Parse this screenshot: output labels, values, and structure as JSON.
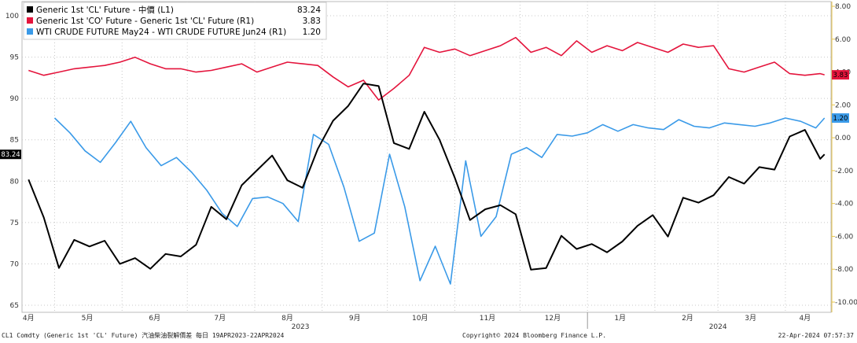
{
  "footer": {
    "left": "CL1 Comdty (Generic 1st 'CL' Future) 汽油柴油裂解價差  每日 19APR2023-22APR2024",
    "center": "Copyright© 2024 Bloomberg Finance L.P.",
    "right": "22-Apr-2024 07:57:37"
  },
  "chart_data": {
    "type": "line",
    "title": "",
    "x_month_labels": [
      "4月",
      "5月",
      "6月",
      "7月",
      "8月",
      "9月",
      "10月",
      "11月",
      "12月",
      "1月",
      "2月",
      "3月",
      "4月"
    ],
    "x_year_labels": [
      "2023",
      "2024"
    ],
    "left_axis": {
      "min": 65,
      "max": 100,
      "ticks": [
        65,
        70,
        75,
        80,
        85,
        90,
        95,
        100
      ]
    },
    "right_axis": {
      "min": -10,
      "max": 8,
      "ticks": [
        "-10.00",
        "-8.00",
        "-6.00",
        "-4.00",
        "-2.00",
        "0.00",
        "2.00",
        "4.00",
        "6.00",
        "8.00"
      ]
    },
    "grid": true,
    "legend_position": "top-left",
    "series": [
      {
        "name": "Generic 1st 'CL' Future - 中價 (L1)",
        "axis": "left",
        "color": "#000000",
        "last_value": "83.24",
        "x": [
          "2023-04-19",
          "2023-04-26",
          "2023-05-03",
          "2023-05-10",
          "2023-05-17",
          "2023-05-24",
          "2023-05-31",
          "2023-06-07",
          "2023-06-14",
          "2023-06-21",
          "2023-06-28",
          "2023-07-05",
          "2023-07-12",
          "2023-07-19",
          "2023-07-26",
          "2023-08-02",
          "2023-08-09",
          "2023-08-16",
          "2023-08-23",
          "2023-08-30",
          "2023-09-06",
          "2023-09-13",
          "2023-09-20",
          "2023-09-27",
          "2023-10-04",
          "2023-10-11",
          "2023-10-18",
          "2023-10-25",
          "2023-11-01",
          "2023-11-08",
          "2023-11-15",
          "2023-11-22",
          "2023-11-29",
          "2023-12-06",
          "2023-12-13",
          "2023-12-20",
          "2023-12-27",
          "2024-01-03",
          "2024-01-10",
          "2024-01-17",
          "2024-01-24",
          "2024-01-31",
          "2024-02-07",
          "2024-02-14",
          "2024-02-21",
          "2024-02-28",
          "2024-03-06",
          "2024-03-13",
          "2024-03-20",
          "2024-03-27",
          "2024-04-03",
          "2024-04-10",
          "2024-04-17",
          "2024-04-19"
        ],
        "values": [
          80.2,
          75.6,
          69.5,
          72.9,
          72.1,
          72.8,
          70.0,
          70.7,
          69.4,
          71.2,
          70.9,
          72.3,
          76.9,
          75.4,
          79.5,
          81.3,
          83.1,
          80.1,
          79.2,
          83.9,
          87.3,
          89.1,
          91.8,
          91.5,
          84.6,
          83.9,
          88.4,
          85.0,
          80.4,
          75.3,
          76.6,
          77.1,
          76.0,
          69.3,
          69.5,
          73.4,
          71.8,
          72.4,
          71.4,
          72.7,
          74.6,
          75.9,
          73.3,
          78.0,
          77.4,
          78.3,
          80.5,
          79.7,
          81.7,
          81.4,
          85.4,
          86.2,
          82.7,
          83.24
        ]
      },
      {
        "name": "Generic 1st 'CO' Future - Generic 1st 'CL' Future (R1)",
        "axis": "right",
        "color": "#e4143c",
        "last_value": "3.83",
        "x": [
          "2023-04-19",
          "2023-04-26",
          "2023-05-03",
          "2023-05-10",
          "2023-05-17",
          "2023-05-24",
          "2023-05-31",
          "2023-06-07",
          "2023-06-14",
          "2023-06-21",
          "2023-06-28",
          "2023-07-05",
          "2023-07-12",
          "2023-07-19",
          "2023-07-26",
          "2023-08-02",
          "2023-08-09",
          "2023-08-16",
          "2023-08-23",
          "2023-08-30",
          "2023-09-06",
          "2023-09-13",
          "2023-09-20",
          "2023-09-27",
          "2023-10-04",
          "2023-10-11",
          "2023-10-18",
          "2023-10-25",
          "2023-11-01",
          "2023-11-08",
          "2023-11-15",
          "2023-11-22",
          "2023-11-29",
          "2023-12-06",
          "2023-12-13",
          "2023-12-20",
          "2023-12-27",
          "2024-01-03",
          "2024-01-10",
          "2024-01-17",
          "2024-01-24",
          "2024-01-31",
          "2024-02-07",
          "2024-02-14",
          "2024-02-21",
          "2024-02-28",
          "2024-03-06",
          "2024-03-13",
          "2024-03-20",
          "2024-03-27",
          "2024-04-03",
          "2024-04-10",
          "2024-04-17",
          "2024-04-19"
        ],
        "values": [
          4.1,
          3.8,
          4.0,
          4.2,
          4.3,
          4.4,
          4.6,
          4.9,
          4.5,
          4.2,
          4.2,
          4.0,
          4.1,
          4.3,
          4.5,
          4.0,
          4.3,
          4.6,
          4.5,
          4.4,
          3.7,
          3.1,
          3.5,
          2.3,
          3.0,
          3.8,
          5.5,
          5.2,
          5.4,
          5.0,
          5.3,
          5.6,
          6.1,
          5.2,
          5.5,
          5.0,
          5.9,
          5.2,
          5.6,
          5.3,
          5.8,
          5.5,
          5.2,
          5.7,
          5.5,
          5.6,
          4.2,
          4.0,
          4.3,
          4.6,
          3.9,
          3.8,
          3.9,
          3.83
        ]
      },
      {
        "name": "WTI CRUDE FUTURE May24 - WTI CRUDE FUTURE Jun24 (R1)",
        "axis": "right",
        "color": "#3a9ae8",
        "last_value": "1.20",
        "x": [
          "2023-05-01",
          "2023-05-08",
          "2023-05-15",
          "2023-05-22",
          "2023-05-29",
          "2023-06-05",
          "2023-06-12",
          "2023-06-19",
          "2023-06-26",
          "2023-07-03",
          "2023-07-10",
          "2023-07-17",
          "2023-07-24",
          "2023-07-31",
          "2023-08-07",
          "2023-08-14",
          "2023-08-21",
          "2023-08-28",
          "2023-09-04",
          "2023-09-11",
          "2023-09-18",
          "2023-09-25",
          "2023-10-02",
          "2023-10-09",
          "2023-10-16",
          "2023-10-23",
          "2023-10-30",
          "2023-11-06",
          "2023-11-13",
          "2023-11-20",
          "2023-11-27",
          "2023-12-04",
          "2023-12-11",
          "2023-12-18",
          "2023-12-25",
          "2024-01-01",
          "2024-01-08",
          "2024-01-15",
          "2024-01-22",
          "2024-01-29",
          "2024-02-05",
          "2024-02-12",
          "2024-02-19",
          "2024-02-26",
          "2024-03-04",
          "2024-03-11",
          "2024-03-18",
          "2024-03-25",
          "2024-04-01",
          "2024-04-08",
          "2024-04-15",
          "2024-04-19"
        ],
        "values": [
          1.2,
          0.3,
          -0.8,
          -1.5,
          -0.3,
          1.0,
          -0.6,
          -1.7,
          -1.2,
          -2.1,
          -3.2,
          -4.6,
          -5.4,
          -3.7,
          -3.6,
          -4.0,
          -5.1,
          0.2,
          -0.4,
          -3.0,
          -6.3,
          -5.8,
          -1.0,
          -4.2,
          -8.7,
          -6.6,
          -8.9,
          -1.4,
          -6.0,
          -4.8,
          -1.0,
          -0.6,
          -1.2,
          0.2,
          0.1,
          0.3,
          0.8,
          0.4,
          0.8,
          0.6,
          0.5,
          1.1,
          0.7,
          0.6,
          0.9,
          0.8,
          0.7,
          0.9,
          1.2,
          1.0,
          0.6,
          1.2
        ]
      }
    ]
  }
}
